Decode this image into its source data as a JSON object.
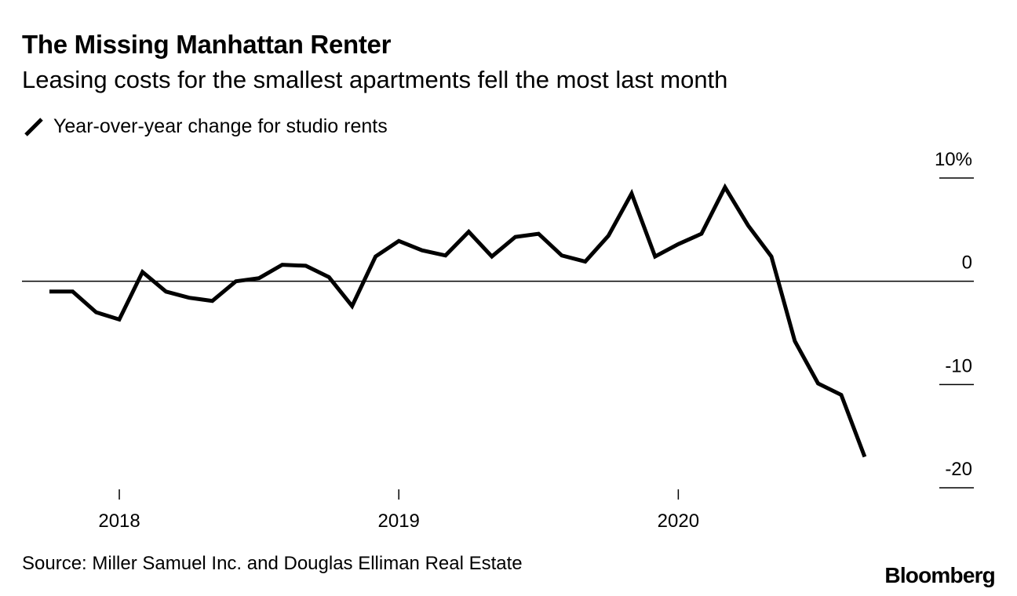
{
  "title": "The Missing Manhattan Renter",
  "subtitle": "Leasing costs for the smallest apartments fell the most last month",
  "legend": {
    "label": "Year-over-year change for studio rents"
  },
  "source": "Source: Miller Samuel Inc. and Douglas Elliman Real Estate",
  "brand": "Bloomberg",
  "colors": {
    "line": "#000000",
    "background": "#ffffff"
  },
  "chart_data": {
    "type": "line",
    "title": "The Missing Manhattan Renter",
    "subtitle": "Leasing costs for the smallest apartments fell the most last month",
    "xlabel": "",
    "ylabel": "",
    "ylim": [
      -20,
      10
    ],
    "y_ticks": [
      {
        "value": 10,
        "label": "10%"
      },
      {
        "value": 0,
        "label": "0"
      },
      {
        "value": -10,
        "label": "-10"
      },
      {
        "value": -20,
        "label": "-20"
      }
    ],
    "x_ticks": [
      {
        "value": 2018.0,
        "label": "2018"
      },
      {
        "value": 2019.0,
        "label": "2019"
      },
      {
        "value": 2020.0,
        "label": "2020"
      }
    ],
    "xlim": [
      2017.75,
      2020.83
    ],
    "zero_line": true,
    "series": [
      {
        "name": "Year-over-year change for studio rents",
        "x": [
          2017.75,
          2017.833,
          2017.917,
          2018.0,
          2018.083,
          2018.167,
          2018.25,
          2018.333,
          2018.417,
          2018.5,
          2018.583,
          2018.667,
          2018.75,
          2018.833,
          2018.917,
          2019.0,
          2019.083,
          2019.167,
          2019.25,
          2019.333,
          2019.417,
          2019.5,
          2019.583,
          2019.667,
          2019.75,
          2019.833,
          2019.917,
          2020.0,
          2020.083,
          2020.167,
          2020.25,
          2020.333,
          2020.417,
          2020.5,
          2020.583,
          2020.667
        ],
        "values": [
          -1.0,
          -1.0,
          -3.0,
          -3.7,
          0.9,
          -1.0,
          -1.6,
          -1.9,
          0.0,
          0.3,
          1.6,
          1.5,
          0.4,
          -2.4,
          2.4,
          3.9,
          3.0,
          2.5,
          4.8,
          2.4,
          4.3,
          4.6,
          2.5,
          1.9,
          4.4,
          8.5,
          2.4,
          3.6,
          4.6,
          9.1,
          5.4,
          2.4,
          -5.8,
          -9.9,
          -11.0,
          -17.0
        ]
      }
    ]
  }
}
